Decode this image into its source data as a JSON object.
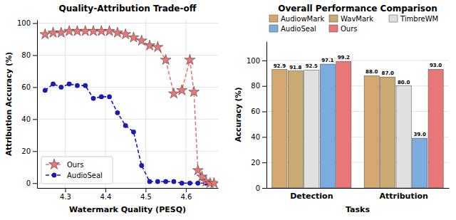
{
  "chart_data": [
    {
      "type": "line",
      "title": "Quality-Attribution Trade-off",
      "xlabel": "Watermark Quality (PESQ)",
      "ylabel": "Attribution Accuracy (%)",
      "series": [
        {
          "name": "Ours",
          "color": "#e87878",
          "marker": "star",
          "line_style": "dashed",
          "x": [
            4.25,
            4.27,
            4.29,
            4.31,
            4.33,
            4.35,
            4.37,
            4.39,
            4.41,
            4.43,
            4.45,
            4.47,
            4.49,
            4.51,
            4.53,
            4.55,
            4.57,
            4.59,
            4.61,
            4.62,
            4.63,
            4.64,
            4.65,
            4.66,
            4.67
          ],
          "values": [
            93,
            94,
            94,
            95,
            95,
            95,
            95,
            95,
            95,
            94,
            93,
            91,
            89,
            86,
            85,
            77,
            56,
            58,
            77,
            57,
            8,
            4,
            1,
            0,
            0
          ]
        },
        {
          "name": "AudioSeal",
          "color": "#1a1acc",
          "marker": "circle",
          "line_style": "dashed",
          "x": [
            4.25,
            4.27,
            4.29,
            4.31,
            4.33,
            4.35,
            4.37,
            4.39,
            4.41,
            4.43,
            4.45,
            4.47,
            4.49,
            4.51,
            4.53,
            4.55,
            4.57,
            4.59,
            4.61,
            4.63,
            4.65
          ],
          "values": [
            58,
            62,
            60,
            62,
            61,
            61,
            53,
            54,
            54,
            44,
            36,
            32,
            11,
            1,
            1,
            1,
            1,
            0,
            0,
            0,
            0
          ]
        }
      ],
      "xlim": [
        4.23,
        4.68
      ],
      "xticks": [
        4.3,
        4.4,
        4.5,
        4.6
      ],
      "ylim": [
        -3,
        102
      ],
      "yticks": [
        0,
        20,
        40,
        60,
        80,
        100
      ],
      "grid": true,
      "legend": "lower left"
    },
    {
      "type": "bar",
      "title": "Overall Performance Comparison",
      "xlabel": "Tasks",
      "ylabel": "Accuracy (%)",
      "categories": [
        "Detection",
        "Attribution"
      ],
      "series": [
        {
          "name": "AudiowMark",
          "color": "#d4a870",
          "values": [
            92.9,
            88.0
          ],
          "value_labels": [
            "92.9",
            "88.0"
          ]
        },
        {
          "name": "WavMark",
          "color": "#c8aa72",
          "values": [
            91.8,
            87.0
          ],
          "value_labels": [
            "91.8",
            "87.0"
          ]
        },
        {
          "name": "TimbreWM",
          "color": "#e0e0e0",
          "values": [
            92.5,
            80.0
          ],
          "value_labels": [
            "92.5",
            "80.0"
          ]
        },
        {
          "name": "AudioSeal",
          "color": "#7aace0",
          "values": [
            97.1,
            39.0
          ],
          "value_labels": [
            "97.1",
            "39.0"
          ]
        },
        {
          "name": "Ours",
          "color": "#e87878",
          "values": [
            99.2,
            93.0
          ],
          "value_labels": [
            "99.2",
            "93.0"
          ]
        }
      ],
      "ylim": [
        0,
        115
      ],
      "yticks": [
        0,
        20,
        40,
        60,
        80,
        100
      ],
      "grid": "y",
      "legend": "upper right",
      "data_labels": true
    }
  ]
}
